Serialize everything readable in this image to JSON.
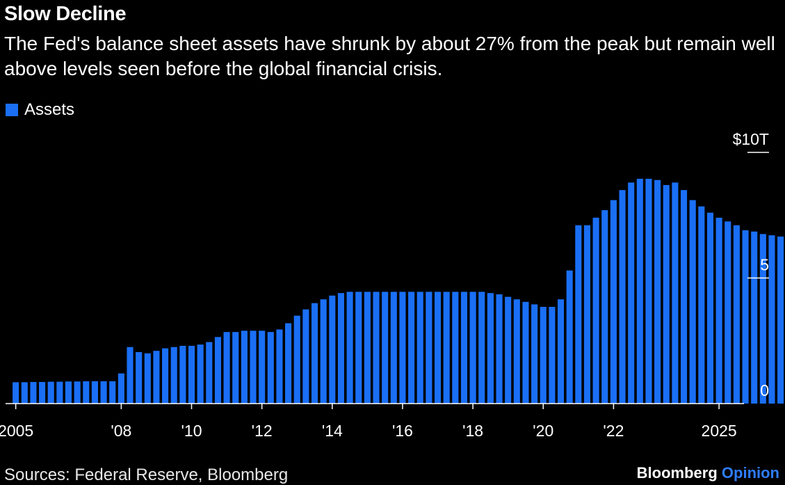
{
  "header": {
    "title": "Slow Decline",
    "subtitle": "The Fed's balance sheet assets have shrunk by about 27% from the peak but remain well above levels seen before the global financial crisis."
  },
  "legend": {
    "label": "Assets"
  },
  "footer": {
    "source": "Sources: Federal Reserve, Bloomberg",
    "brand_primary": "Bloomberg",
    "brand_secondary": "Opinion"
  },
  "colors": {
    "background": "#000000",
    "bar": "#1a6ff5",
    "axis": "#ffffff",
    "text": "#ffffff",
    "brand_accent": "#2f7cff"
  },
  "chart_data": {
    "type": "bar",
    "series": [
      {
        "name": "Assets",
        "x_start": 2005,
        "x_step": 0.25,
        "values": [
          0.85,
          0.85,
          0.86,
          0.86,
          0.87,
          0.87,
          0.88,
          0.88,
          0.89,
          0.89,
          0.89,
          0.89,
          1.2,
          2.25,
          2.05,
          2.0,
          2.1,
          2.2,
          2.25,
          2.3,
          2.3,
          2.35,
          2.45,
          2.65,
          2.85,
          2.85,
          2.9,
          2.9,
          2.9,
          2.85,
          2.95,
          3.2,
          3.5,
          3.75,
          4.0,
          4.15,
          4.3,
          4.4,
          4.45,
          4.45,
          4.45,
          4.45,
          4.45,
          4.45,
          4.45,
          4.45,
          4.45,
          4.45,
          4.45,
          4.45,
          4.45,
          4.45,
          4.45,
          4.45,
          4.4,
          4.35,
          4.25,
          4.15,
          4.05,
          3.95,
          3.85,
          3.85,
          4.15,
          5.3,
          7.1,
          7.1,
          7.4,
          7.7,
          8.1,
          8.5,
          8.8,
          8.95,
          8.95,
          8.9,
          8.7,
          8.8,
          8.5,
          8.1,
          7.85,
          7.6,
          7.4,
          7.25,
          7.1,
          6.9,
          6.85,
          6.75,
          6.7,
          6.65
        ]
      }
    ],
    "x_ticks": [
      {
        "value": 2005,
        "label": "2005"
      },
      {
        "value": 2008,
        "label": "'08"
      },
      {
        "value": 2010,
        "label": "'10"
      },
      {
        "value": 2012,
        "label": "'12"
      },
      {
        "value": 2014,
        "label": "'14"
      },
      {
        "value": 2016,
        "label": "'16"
      },
      {
        "value": 2018,
        "label": "'18"
      },
      {
        "value": 2020,
        "label": "'20"
      },
      {
        "value": 2022,
        "label": "'22"
      },
      {
        "value": 2025,
        "label": "2025"
      }
    ],
    "y_ticks": [
      {
        "value": 10,
        "label": "$10T"
      },
      {
        "value": 5,
        "label": "5"
      },
      {
        "value": 0,
        "label": "0"
      }
    ],
    "xlim": [
      2004.75,
      2026.5
    ],
    "ylim": [
      0,
      10
    ],
    "ylabel_position": "right",
    "legend_position": "top-left",
    "grid": false
  }
}
